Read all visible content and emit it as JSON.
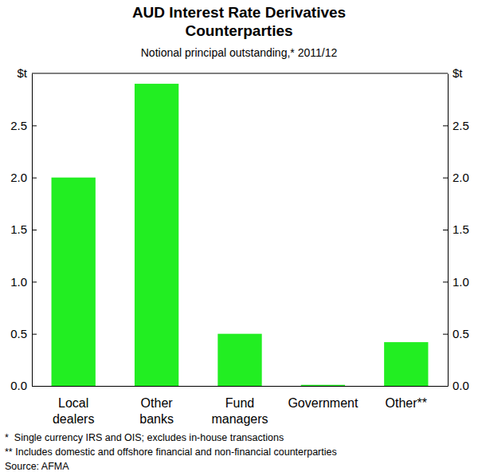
{
  "chart_data": {
    "type": "bar",
    "title": [
      "AUD Interest Rate Derivatives",
      "Counterparties"
    ],
    "subtitle": "Notional principal outstanding,* 2011/12",
    "y_label": "$t",
    "categories": [
      "Local dealers",
      "Other banks",
      "Fund managers",
      "Government",
      "Other**"
    ],
    "values": [
      2.0,
      2.9,
      0.5,
      0.01,
      0.42
    ],
    "color": "#22ee22",
    "ylim": [
      0,
      3
    ],
    "yticks": [
      {
        "value": 0,
        "label": "0.0"
      },
      0.5,
      {
        "value": 1,
        "label": "1.0"
      },
      1.5,
      {
        "value": 2,
        "label": "2.0"
      },
      2.5
    ],
    "grid": false,
    "notes": [
      "*  Single currency IRS and OIS; excludes in-house transactions",
      "** Includes domestic and offshore financial and non-financial counterparties",
      "Source: AFMA"
    ]
  }
}
